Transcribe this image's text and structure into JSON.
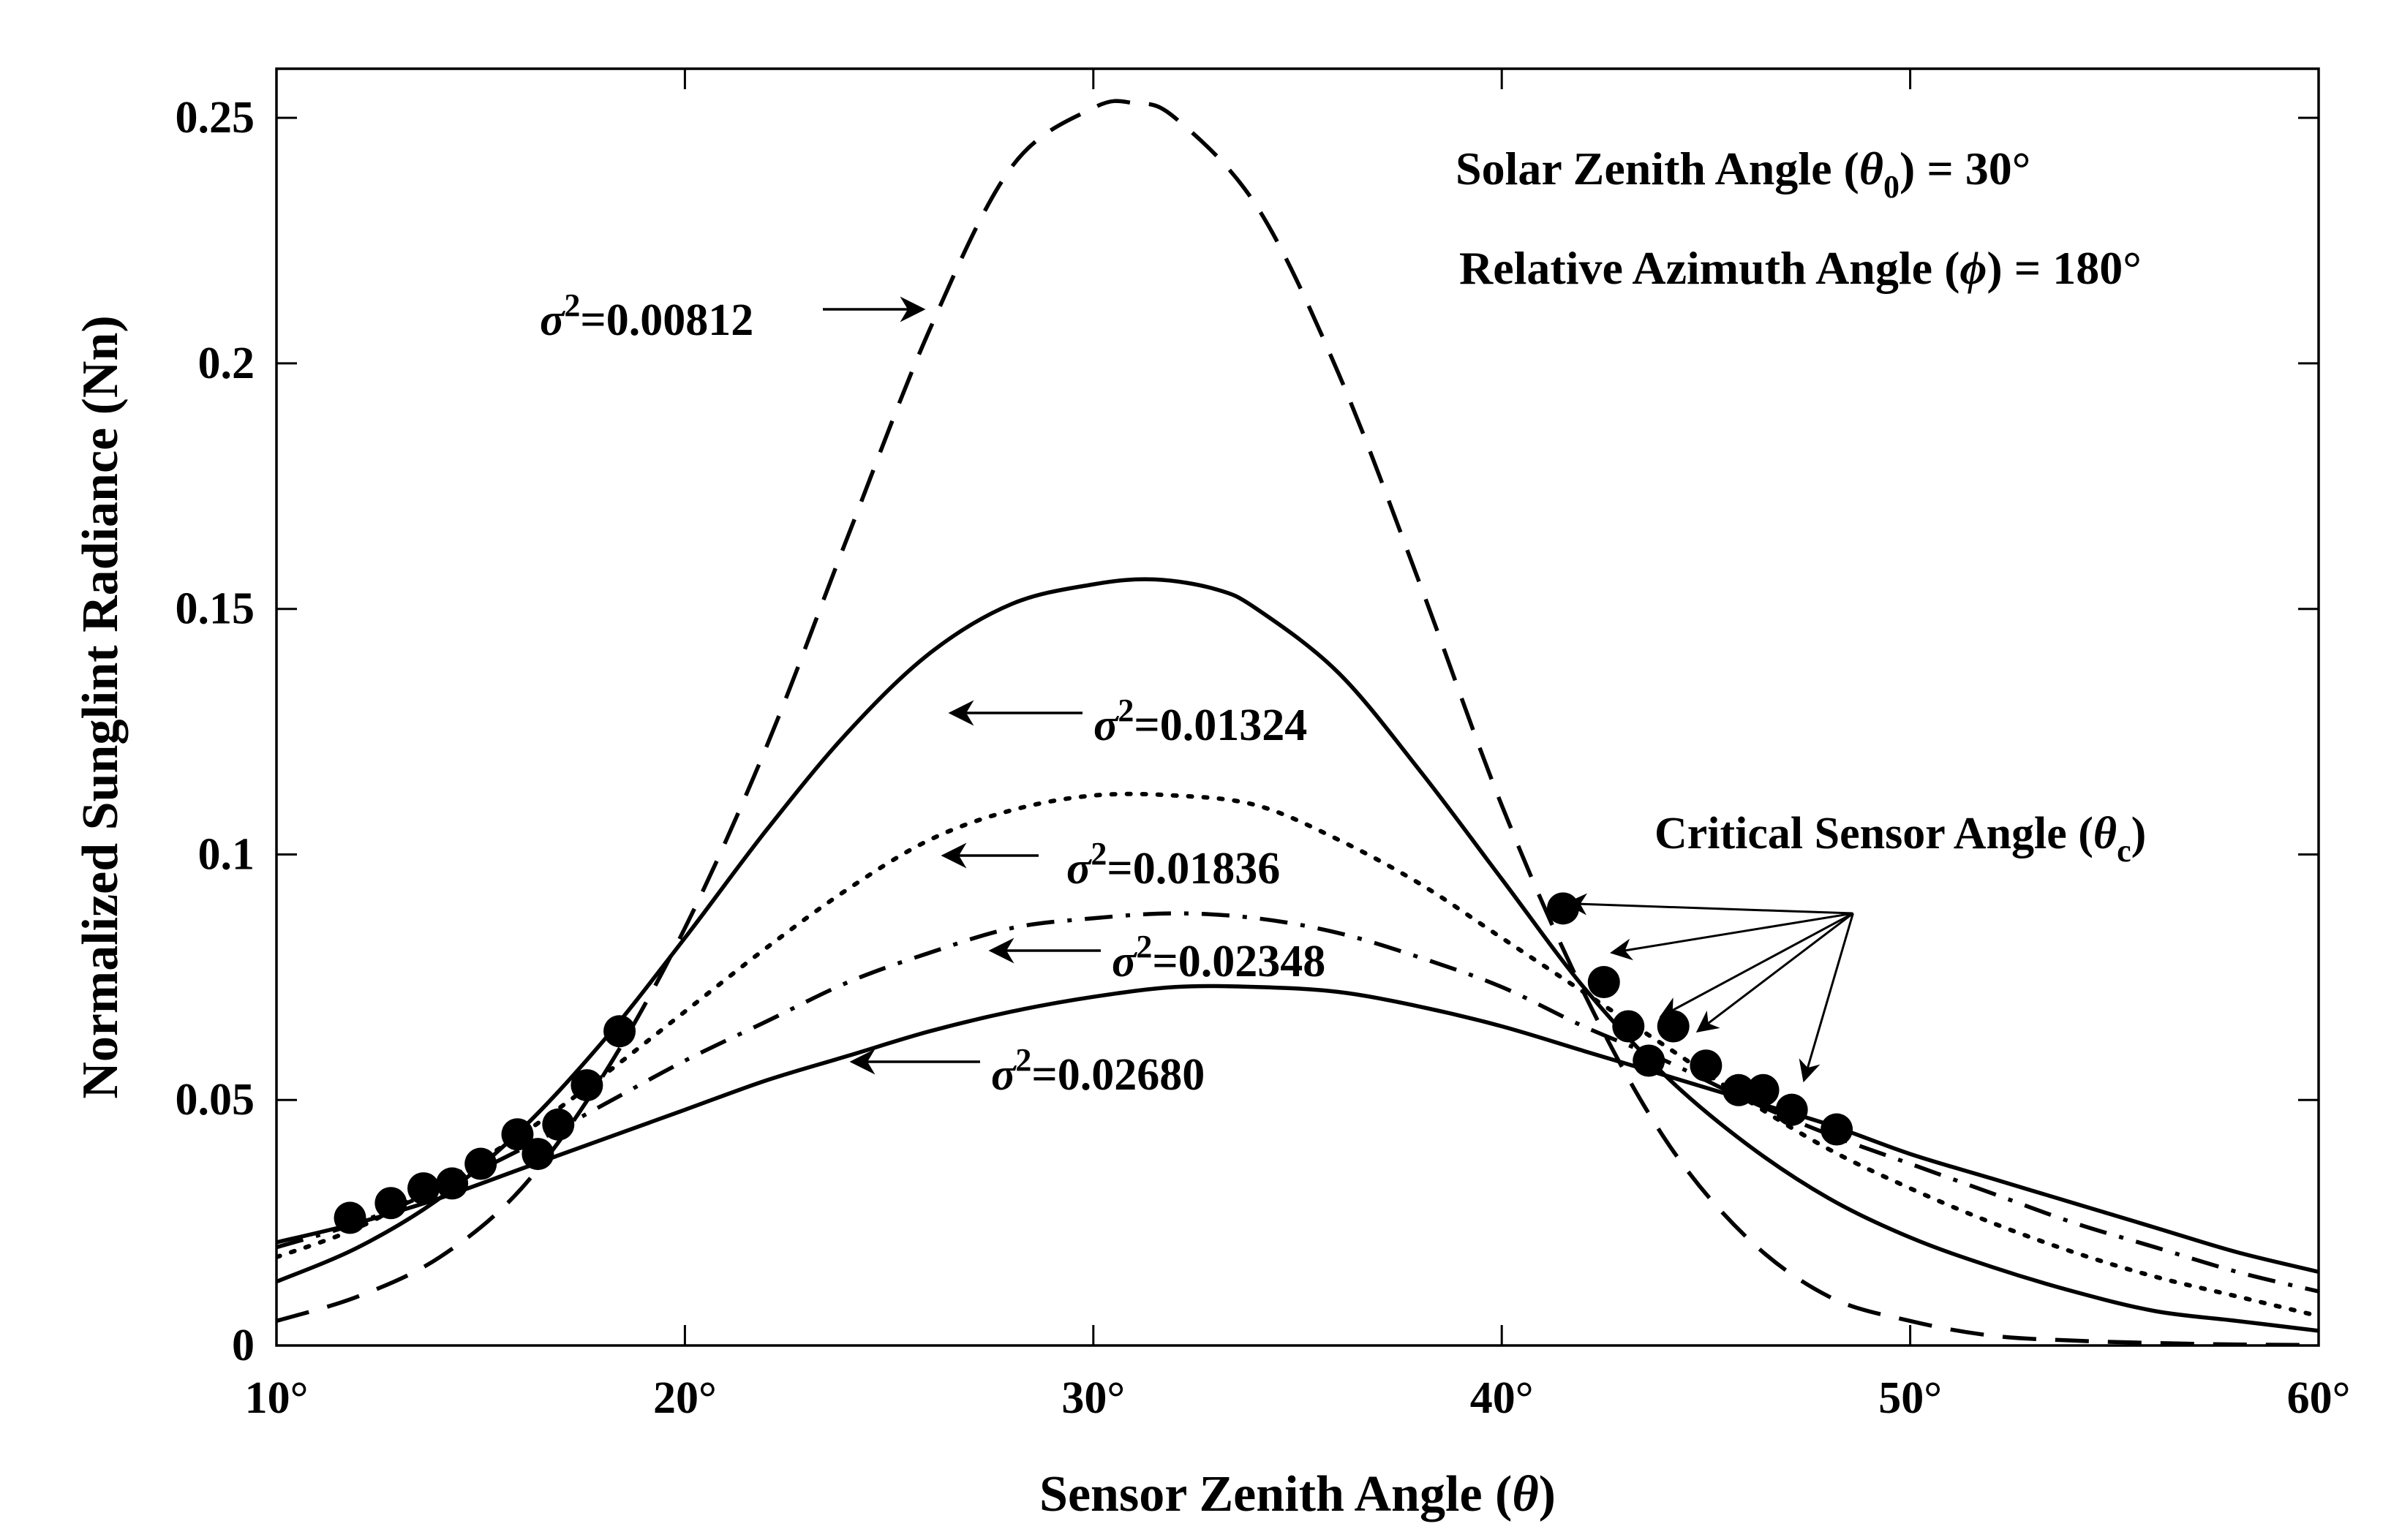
{
  "chart_data": {
    "type": "line",
    "title": "",
    "xlabel": "Sensor Zenith Angle (θ)",
    "ylabel": "Normalized Sunglint Radiance (Nn)",
    "xlim": [
      10,
      60
    ],
    "ylim": [
      0,
      0.26
    ],
    "x_ticks": [
      10,
      20,
      30,
      40,
      50,
      60
    ],
    "x_tick_labels": [
      "10°",
      "20°",
      "30°",
      "40°",
      "50°",
      "60°"
    ],
    "y_ticks": [
      0,
      0.05,
      0.1,
      0.15,
      0.2,
      0.25
    ],
    "y_tick_labels": [
      "0",
      "0.05",
      "0.1",
      "0.15",
      "0.2",
      "0.25"
    ],
    "grid": false,
    "conditions": [
      {
        "text": "Solar Zenith Angle (θ0) = 30°",
        "prefix": "Solar Zenith Angle (",
        "symbol": "θ",
        "sub": "0",
        "suffix": ") = 30°"
      },
      {
        "text": "Relative Azimuth Angle (ϕ) = 180°",
        "prefix": "Relative Azimuth Angle (",
        "symbol": "ϕ",
        "suffix": ") = 180°"
      }
    ],
    "critical_label": {
      "text": "Critical Sensor Angle (θc)",
      "prefix": "Critical Sensor Angle (",
      "symbol": "θ",
      "sub": "c",
      "suffix": ")"
    },
    "series": [
      {
        "name": "σ2=0.00812",
        "sym": "σ",
        "sup": "2",
        "value_text": "=0.00812",
        "dash": "dashed",
        "x": [
          10,
          12,
          14,
          16,
          18,
          20,
          22,
          24,
          26,
          28,
          30,
          31,
          32,
          34,
          36,
          38,
          40,
          42,
          44,
          46,
          48,
          50,
          52,
          54,
          56,
          58,
          60
        ],
        "values": [
          0.005,
          0.01,
          0.018,
          0.032,
          0.055,
          0.085,
          0.122,
          0.165,
          0.207,
          0.24,
          0.252,
          0.253,
          0.25,
          0.232,
          0.198,
          0.155,
          0.11,
          0.072,
          0.042,
          0.022,
          0.01,
          0.005,
          0.002,
          0.001,
          0.0005,
          0.0002,
          0.0001
        ]
      },
      {
        "name": "σ2=0.01324",
        "sym": "σ",
        "sup": "2",
        "value_text": "=0.01324",
        "dash": "solid",
        "x": [
          10,
          12,
          14,
          16,
          18,
          20,
          22,
          24,
          26,
          28,
          30,
          31.5,
          33,
          34,
          36,
          38,
          40,
          42,
          44,
          46,
          48,
          50,
          52,
          54,
          56,
          58,
          60
        ],
        "values": [
          0.013,
          0.02,
          0.03,
          0.044,
          0.062,
          0.083,
          0.105,
          0.125,
          0.141,
          0.151,
          0.155,
          0.156,
          0.154,
          0.15,
          0.137,
          0.117,
          0.095,
          0.073,
          0.055,
          0.041,
          0.03,
          0.022,
          0.016,
          0.011,
          0.007,
          0.005,
          0.003
        ]
      },
      {
        "name": "σ2=0.01836",
        "sym": "σ",
        "sup": "2",
        "value_text": "=0.01836",
        "dash": "dotted",
        "x": [
          10,
          12,
          14,
          16,
          18,
          20,
          22,
          24,
          26,
          28,
          30,
          32,
          34,
          36,
          38,
          40,
          42,
          44,
          46,
          48,
          50,
          52,
          54,
          56,
          58,
          60
        ],
        "values": [
          0.018,
          0.024,
          0.033,
          0.043,
          0.055,
          0.068,
          0.081,
          0.093,
          0.103,
          0.109,
          0.112,
          0.112,
          0.11,
          0.103,
          0.094,
          0.083,
          0.072,
          0.061,
          0.05,
          0.04,
          0.032,
          0.025,
          0.019,
          0.014,
          0.01,
          0.006
        ]
      },
      {
        "name": "σ2=0.02348",
        "sym": "σ",
        "sup": "2",
        "value_text": "=0.02348",
        "dash": "dashdot",
        "x": [
          10,
          12,
          14,
          16,
          18,
          20,
          22,
          24,
          26,
          28,
          30,
          32,
          34,
          36,
          38,
          40,
          42,
          44,
          46,
          48,
          50,
          52,
          54,
          56,
          58,
          60
        ],
        "values": [
          0.02,
          0.025,
          0.032,
          0.04,
          0.049,
          0.058,
          0.066,
          0.074,
          0.08,
          0.085,
          0.087,
          0.088,
          0.087,
          0.084,
          0.079,
          0.073,
          0.065,
          0.058,
          0.05,
          0.043,
          0.037,
          0.031,
          0.025,
          0.02,
          0.015,
          0.011
        ]
      },
      {
        "name": "σ2=0.02680",
        "sym": "σ",
        "sup": "2",
        "value_text": "=0.02680",
        "dash": "solid",
        "x": [
          10,
          12,
          14,
          16,
          18,
          20,
          22,
          24,
          26,
          28,
          30,
          32,
          34,
          36,
          38,
          40,
          42,
          44,
          46,
          48,
          50,
          52,
          54,
          56,
          58,
          60
        ],
        "values": [
          0.021,
          0.025,
          0.03,
          0.036,
          0.042,
          0.048,
          0.054,
          0.059,
          0.064,
          0.068,
          0.071,
          0.073,
          0.073,
          0.072,
          0.069,
          0.065,
          0.06,
          0.055,
          0.05,
          0.045,
          0.039,
          0.034,
          0.029,
          0.024,
          0.019,
          0.015
        ]
      }
    ],
    "critical_points": {
      "x": [
        11.8,
        12.8,
        13.6,
        14.3,
        15.0,
        15.9,
        16.4,
        16.9,
        17.6,
        18.4,
        41.5,
        42.5,
        43.1,
        43.6,
        44.2,
        45.0,
        45.8,
        46.4,
        47.1,
        48.2
      ],
      "y": [
        0.026,
        0.029,
        0.032,
        0.033,
        0.037,
        0.043,
        0.039,
        0.045,
        0.053,
        0.064,
        0.089,
        0.074,
        0.065,
        0.058,
        0.065,
        0.057,
        0.052,
        0.052,
        0.048,
        0.044
      ]
    },
    "annotations": [
      {
        "label_series": 0,
        "tail": [
          25.8,
          0.212
        ],
        "head": [
          19.3,
          0.212
        ],
        "arrow_from": [
          23.5,
          0.212
        ],
        "arrow_to": [
          25.8,
          0.212
        ],
        "label_pos": [
          16.3,
          0.205
        ]
      },
      {
        "label_series": 1,
        "tail": [
          30.0,
          0.128
        ],
        "head": [
          26.3,
          0.128
        ],
        "label_pos": [
          30.0,
          0.125
        ]
      },
      {
        "label_series": 2,
        "tail": [
          29.0,
          0.1
        ],
        "head": [
          26.3,
          0.1
        ],
        "label_pos": [
          29.0,
          0.094
        ]
      },
      {
        "label_series": 3,
        "tail": [
          30.0,
          0.08
        ],
        "head": [
          27.0,
          0.08
        ],
        "label_pos": [
          30.0,
          0.076
        ]
      },
      {
        "label_series": 4,
        "tail": [
          27.8,
          0.058
        ],
        "head": [
          24.3,
          0.058
        ],
        "label_pos": [
          27.8,
          0.053
        ]
      }
    ],
    "critical_arrows_origin": [
      48.6,
      0.088
    ],
    "critical_arrow_targets": [
      [
        41.6,
        0.09
      ],
      [
        42.7,
        0.08
      ],
      [
        43.9,
        0.067
      ],
      [
        44.8,
        0.064
      ],
      [
        47.4,
        0.054
      ]
    ]
  }
}
